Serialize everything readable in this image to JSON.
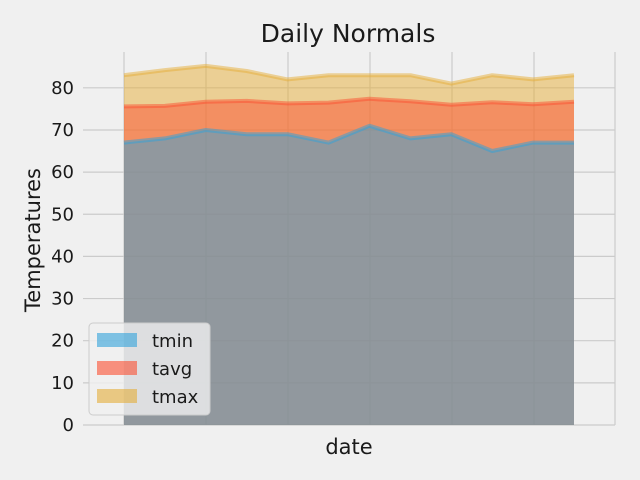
{
  "chart_data": {
    "type": "area",
    "title": "Daily Normals",
    "xlabel": "date",
    "ylabel": "Temperatures",
    "ylim": [
      0,
      88.5
    ],
    "yticks": [
      0,
      10,
      20,
      30,
      40,
      50,
      60,
      70,
      80
    ],
    "stacked": false,
    "grid": true,
    "legend_position": "lower-left",
    "series": [
      {
        "name": "tmin",
        "color": "#30a2da",
        "values": [
          67,
          68,
          70,
          69,
          69,
          67,
          71,
          68,
          69,
          65,
          67,
          67
        ]
      },
      {
        "name": "tavg",
        "color": "#fc4f30",
        "values": [
          75.6,
          75.7,
          76.7,
          76.9,
          76.3,
          76.5,
          77.4,
          76.8,
          76.0,
          76.6,
          76.1,
          76.7
        ]
      },
      {
        "name": "tmax",
        "color": "#e5ae38",
        "values": [
          83,
          84.2,
          85.2,
          84,
          82,
          83,
          83,
          83,
          81,
          83,
          82,
          83
        ]
      }
    ]
  }
}
